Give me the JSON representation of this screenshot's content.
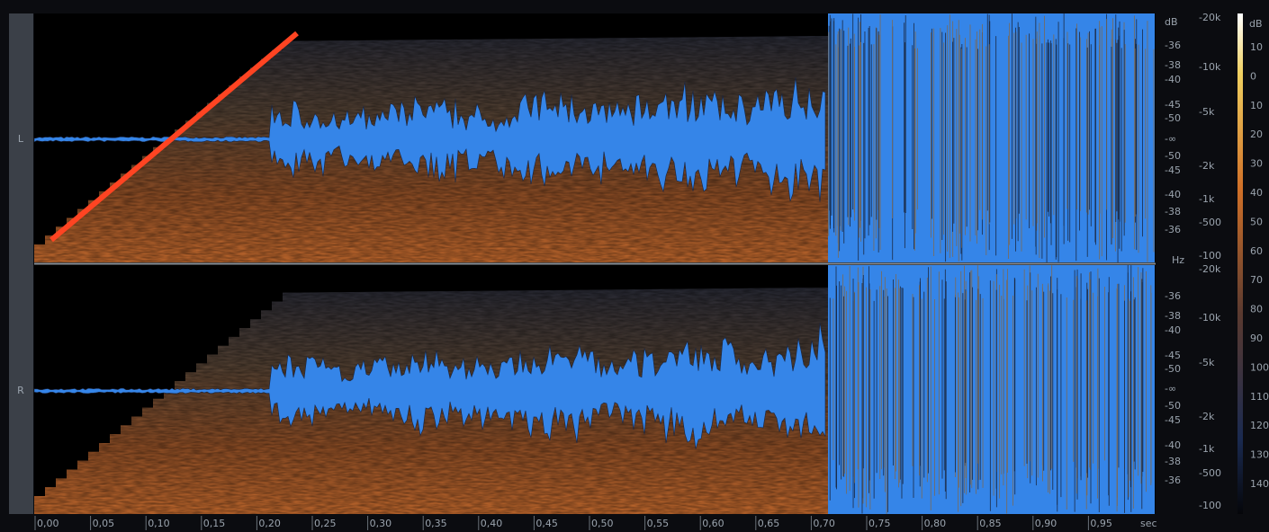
{
  "channels": [
    {
      "label": "L",
      "db_scale": [
        "dB",
        "-36",
        "-38",
        "-40",
        "-45",
        "-50",
        "-∞",
        "-50",
        "-45",
        "-40",
        "-38",
        "-36"
      ],
      "frequency_scale": [
        "-20k",
        "-10k",
        "-5k",
        "-2k",
        "-1k",
        "-500",
        "-100"
      ]
    },
    {
      "label": "R",
      "db_scale": [
        "-36",
        "-38",
        "-40",
        "-45",
        "-50",
        "-∞",
        "-50",
        "-45",
        "-40",
        "-38",
        "-36"
      ],
      "frequency_scale": [
        "-20k",
        "-10k",
        "-5k",
        "-2k",
        "-1k",
        "-500",
        "-100"
      ]
    }
  ],
  "frequency_unit": "Hz",
  "time_axis": {
    "labels": [
      "0,00",
      "0,05",
      "0,10",
      "0,15",
      "0,20",
      "0,25",
      "0,30",
      "0,35",
      "0,40",
      "0,45",
      "0,50",
      "0,55",
      "0,60",
      "0,65",
      "0,70",
      "0,75",
      "0,80",
      "0,85",
      "0,90",
      "0,95"
    ],
    "unit": "sec"
  },
  "color_scale": {
    "unit": "dB",
    "labels": [
      "10",
      "0",
      "10",
      "20",
      "30",
      "40",
      "50",
      "60",
      "70",
      "80",
      "90",
      "100",
      "110",
      "120",
      "130",
      "140"
    ]
  }
}
